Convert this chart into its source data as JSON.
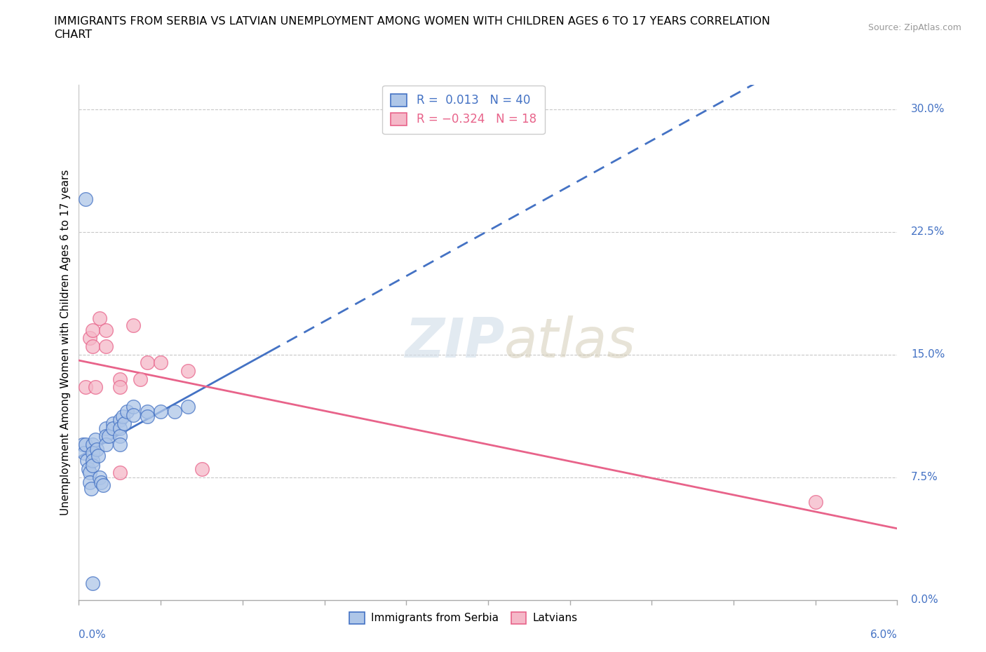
{
  "title_line1": "IMMIGRANTS FROM SERBIA VS LATVIAN UNEMPLOYMENT AMONG WOMEN WITH CHILDREN AGES 6 TO 17 YEARS CORRELATION",
  "title_line2": "CHART",
  "source_text": "Source: ZipAtlas.com",
  "ylabel_label": "Unemployment Among Women with Children Ages 6 to 17 years",
  "legend_labels": [
    "Immigrants from Serbia",
    "Latvians"
  ],
  "serbia_color": "#aec6e8",
  "latvian_color": "#f5b8c8",
  "serbia_line_color": "#4472c4",
  "latvian_line_color": "#e8638a",
  "R_serbia": 0.013,
  "N_serbia": 40,
  "R_latvian": -0.324,
  "N_latvian": 18,
  "xlim": [
    0.0,
    0.06
  ],
  "ylim": [
    0.0,
    0.315
  ],
  "serbia_x": [
    0.0003,
    0.0004,
    0.0005,
    0.0006,
    0.0007,
    0.0008,
    0.0008,
    0.0009,
    0.001,
    0.001,
    0.001,
    0.001,
    0.0012,
    0.0013,
    0.0014,
    0.0015,
    0.0016,
    0.0018,
    0.002,
    0.002,
    0.002,
    0.0022,
    0.0025,
    0.0025,
    0.003,
    0.003,
    0.003,
    0.003,
    0.0032,
    0.0033,
    0.0035,
    0.004,
    0.004,
    0.005,
    0.005,
    0.006,
    0.007,
    0.008,
    0.001,
    0.0005
  ],
  "serbia_y": [
    0.095,
    0.09,
    0.095,
    0.085,
    0.08,
    0.078,
    0.072,
    0.068,
    0.095,
    0.09,
    0.085,
    0.082,
    0.098,
    0.092,
    0.088,
    0.075,
    0.072,
    0.07,
    0.105,
    0.1,
    0.095,
    0.1,
    0.108,
    0.105,
    0.11,
    0.105,
    0.1,
    0.095,
    0.112,
    0.108,
    0.115,
    0.118,
    0.113,
    0.115,
    0.112,
    0.115,
    0.115,
    0.118,
    0.01,
    0.245
  ],
  "latvian_x": [
    0.0005,
    0.0008,
    0.001,
    0.001,
    0.0012,
    0.0015,
    0.002,
    0.002,
    0.003,
    0.003,
    0.004,
    0.0045,
    0.005,
    0.006,
    0.008,
    0.009,
    0.054,
    0.003
  ],
  "latvian_y": [
    0.13,
    0.16,
    0.165,
    0.155,
    0.13,
    0.172,
    0.165,
    0.155,
    0.135,
    0.13,
    0.168,
    0.135,
    0.145,
    0.145,
    0.14,
    0.08,
    0.06,
    0.078
  ],
  "ytick_vals": [
    0.0,
    0.075,
    0.15,
    0.225,
    0.3
  ],
  "ytick_labels": [
    "0.0%",
    "7.5%",
    "15.0%",
    "22.5%",
    "30.0%"
  ]
}
